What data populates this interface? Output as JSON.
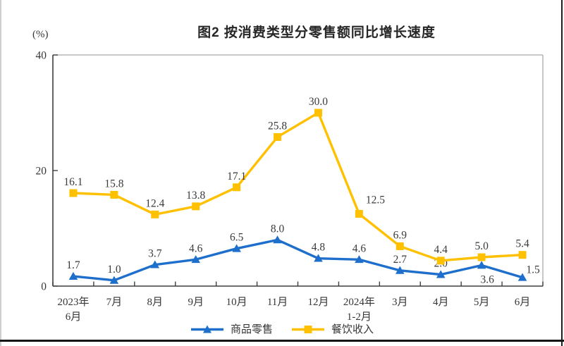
{
  "title": "图2 按消费类型分零售额同比增长速度",
  "chart_data": {
    "type": "line",
    "categories": [
      "2023年\n6月",
      "7月",
      "8月",
      "9月",
      "10月",
      "11月",
      "12月",
      "2024年\n1-2月",
      "3月",
      "4月",
      "5月",
      "6月"
    ],
    "series": [
      {
        "name": "商品零售",
        "color": "#1E6FCB",
        "marker": "triangle",
        "values": [
          1.7,
          1.0,
          3.7,
          4.6,
          6.5,
          8.0,
          4.8,
          4.6,
          2.7,
          2.0,
          3.6,
          1.5
        ],
        "label_offsets": {
          "10": [
            8,
            25
          ],
          "11": [
            15,
            -6
          ]
        }
      },
      {
        "name": "餐饮收入",
        "color": "#FFC000",
        "marker": "square",
        "values": [
          16.1,
          15.8,
          12.4,
          13.8,
          17.1,
          25.8,
          30.0,
          12.5,
          6.9,
          4.4,
          5.0,
          5.4
        ],
        "label_offsets": {
          "7": [
            23,
            -15
          ]
        }
      }
    ],
    "ylabel": "(%)",
    "ylim": [
      0,
      40
    ],
    "yticks": [
      0,
      20,
      40
    ],
    "grid": false,
    "legend_position": "bottom"
  },
  "colors": {
    "axis_line": "#3f3f3f",
    "plot_border": "#a9a9a9",
    "label_text": "#3a3a3a"
  }
}
